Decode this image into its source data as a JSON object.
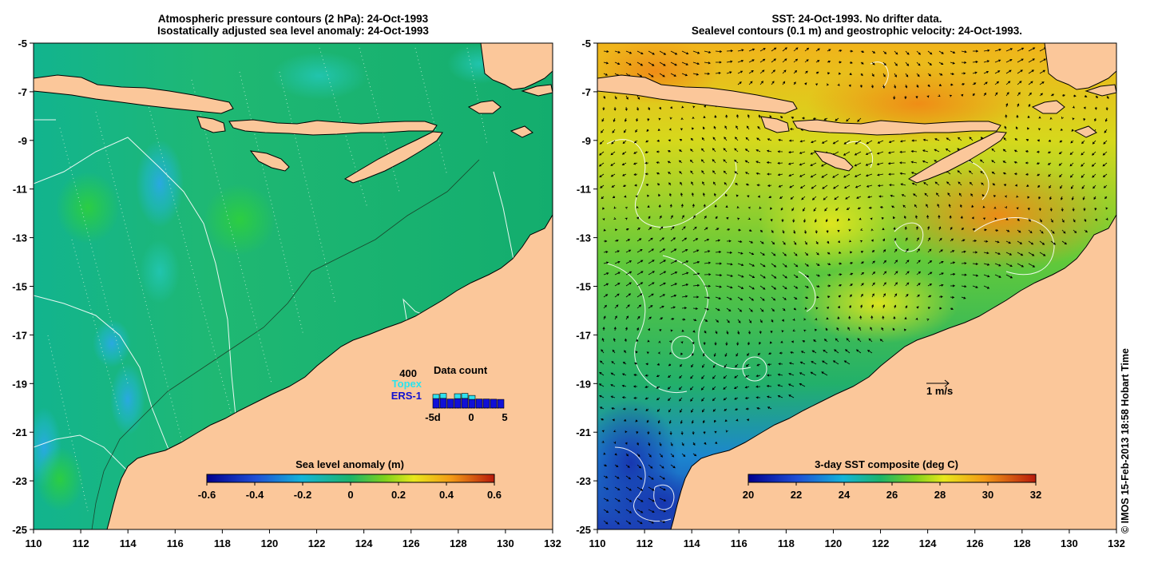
{
  "left_panel": {
    "title_line1": "Atmospheric pressure contours (2 hPa): 24-Oct-1993",
    "title_line2": "Isostatically adjusted sea level anomaly: 24-Oct-1993",
    "colorbar": {
      "label": "Sea level anomaly (m)",
      "ticks": [
        "-0.6",
        "-0.4",
        "-0.2",
        "0",
        "0.2",
        "0.4",
        "0.6"
      ]
    },
    "data_count": {
      "title": "Data count",
      "max_label": "400",
      "topex_label": "Topex",
      "ers_label": "ERS-1",
      "day_ticks": [
        "-5d",
        "0",
        "5"
      ],
      "ers_counts": [
        240,
        245,
        230,
        240,
        245,
        220,
        230,
        230,
        225,
        220
      ],
      "topex_counts": [
        160,
        190,
        0,
        185,
        190,
        150,
        0,
        0,
        0,
        0
      ],
      "max_count": 400
    }
  },
  "right_panel": {
    "title_line1": "SST: 24-Oct-1993. No drifter data.",
    "title_line2": "Sealevel contours (0.1 m) and geostrophic velocity: 24-Oct-1993.",
    "colorbar": {
      "label": "3-day SST composite (deg C)",
      "ticks": [
        "20",
        "22",
        "24",
        "26",
        "28",
        "30",
        "32"
      ]
    },
    "velocity_scale_label": "1 m/s"
  },
  "axes": {
    "x_ticks": [
      "110",
      "112",
      "114",
      "116",
      "118",
      "120",
      "122",
      "124",
      "126",
      "128",
      "130",
      "132"
    ],
    "y_ticks": [
      "-5",
      "-7",
      "-9",
      "-11",
      "-13",
      "-15",
      "-17",
      "-19",
      "-21",
      "-23",
      "-25"
    ],
    "lon_range": [
      110,
      132
    ],
    "lat_range": [
      -25,
      -5
    ]
  },
  "copyright": "© IMOS 15-Feb-2013 18:58 Hobart Time",
  "colors": {
    "land": "#fbc79a",
    "ocean_sla": "#1fb46a",
    "sst_warm": "#f3a616",
    "sst_cold": "#1c4fc8"
  }
}
